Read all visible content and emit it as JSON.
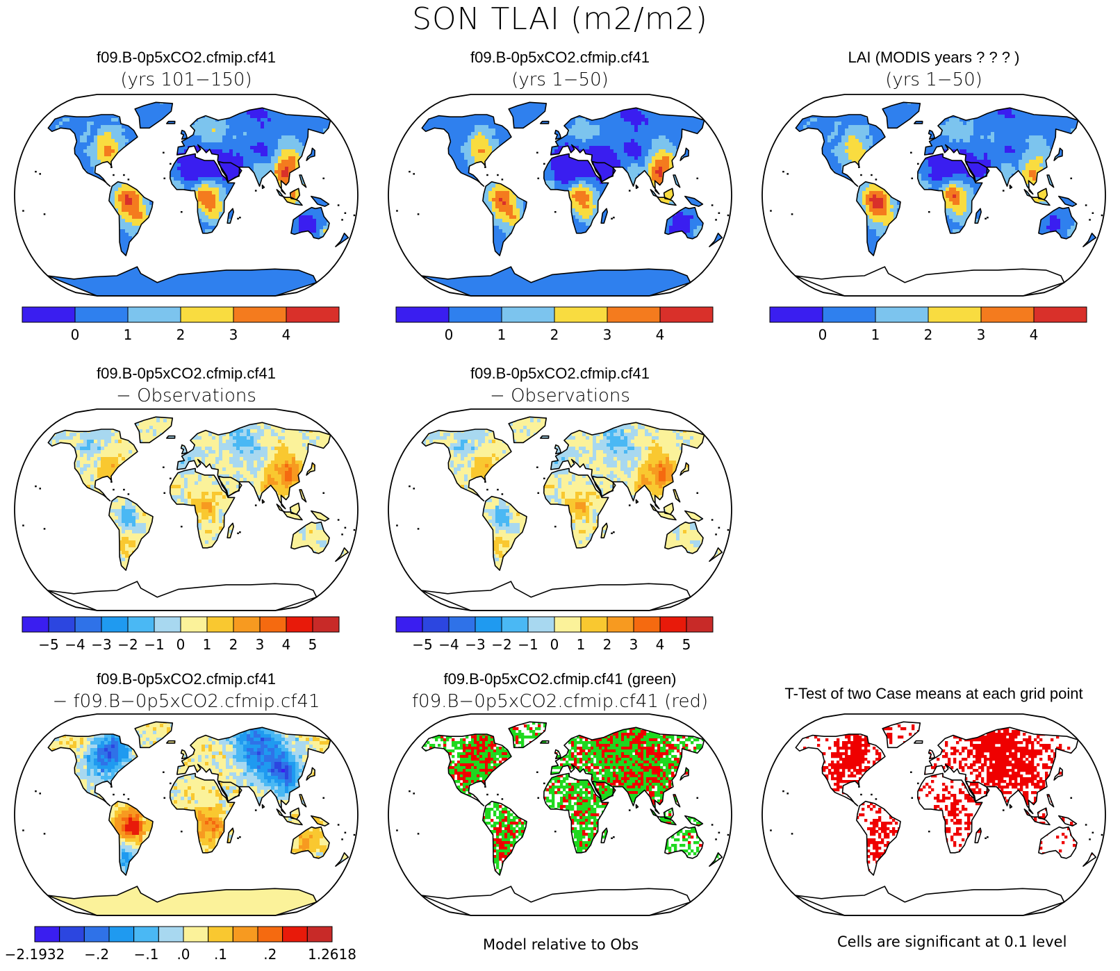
{
  "title": "SON TLAI (m2/m2)",
  "colors": {
    "abs_scale": [
      "#3a1ef0",
      "#2f80ee",
      "#7cc4ee",
      "#f9dc40",
      "#f47b1e",
      "#d9302a"
    ],
    "diff_scale": [
      "#3a1ef0",
      "#2c46e0",
      "#2f72e8",
      "#1f9af0",
      "#4ab8f4",
      "#a8d8f0",
      "#fbf29a",
      "#f9c830",
      "#f79a20",
      "#f56a10",
      "#e81a0a",
      "#c82a28"
    ],
    "sig_red": "#ef0000",
    "sig_green": "#1fd91f"
  },
  "panels": [
    {
      "title1": "f09.B-0p5xCO2.cfmip.cf41",
      "title2": "(yrs 101−150)"
    },
    {
      "title1": "f09.B-0p5xCO2.cfmip.cf41",
      "title2": "(yrs 1−50)"
    },
    {
      "title1": "LAI (MODIS years ? ? ? )",
      "title2": "(yrs 1−50)"
    },
    {
      "title1": "f09.B-0p5xCO2.cfmip.cf41",
      "title2": "− Observations"
    },
    {
      "title1": "f09.B-0p5xCO2.cfmip.cf41",
      "title2": "− Observations"
    },
    {
      "title1": "f09.B-0p5xCO2.cfmip.cf41",
      "title2": "− f09.B−0p5xCO2.cfmip.cf41"
    },
    {
      "title1": "f09.B-0p5xCO2.cfmip.cf41 (green)",
      "title2": "f09.B−0p5xCO2.cfmip.cf41 (red)"
    },
    {
      "title1": "T-Test of two Case means at each grid point",
      "title2": ""
    }
  ],
  "colorbars": {
    "abs_labels": [
      "0",
      "1",
      "2",
      "3",
      "4"
    ],
    "diff_labels": [
      "−5",
      "−4",
      "−3",
      "−2",
      "−1",
      "0",
      "1",
      "2",
      "3",
      "4",
      "5"
    ],
    "case_diff_labels": [
      "−2.1932",
      "−.2",
      "−.1",
      ".0",
      ".1",
      ".2",
      "1.2618"
    ]
  },
  "footnotes": {
    "model_obs": "Model relative to Obs",
    "significance": "Cells are significant at 0.1 level"
  },
  "chart_data": [
    {
      "type": "heatmap",
      "title": "f09.B-0p5xCO2.cfmip.cf41 (yrs 101−150)",
      "colorbar_ticks": [
        0,
        1,
        2,
        3,
        4
      ]
    },
    {
      "type": "heatmap",
      "title": "f09.B-0p5xCO2.cfmip.cf41 (yrs 1−50)",
      "colorbar_ticks": [
        0,
        1,
        2,
        3,
        4
      ]
    },
    {
      "type": "heatmap",
      "title": "LAI (MODIS years ? ? ? ) (yrs 1−50)",
      "colorbar_ticks": [
        0,
        1,
        2,
        3,
        4
      ]
    },
    {
      "type": "heatmap",
      "title": "f09.B-0p5xCO2.cfmip.cf41 − Observations",
      "colorbar_ticks": [
        -5,
        -4,
        -3,
        -2,
        -1,
        0,
        1,
        2,
        3,
        4,
        5
      ]
    },
    {
      "type": "heatmap",
      "title": "f09.B-0p5xCO2.cfmip.cf41 − Observations",
      "colorbar_ticks": [
        -5,
        -4,
        -3,
        -2,
        -1,
        0,
        1,
        2,
        3,
        4,
        5
      ]
    },
    {
      "type": "heatmap",
      "title": "f09.B-0p5xCO2.cfmip.cf41 − f09.B−0p5xCO2.cfmip.cf41",
      "colorbar_ticks": [
        -2.1932,
        -0.2,
        -0.1,
        0.0,
        0.1,
        0.2,
        1.2618
      ]
    },
    {
      "type": "heatmap",
      "title": "f09.B-0p5xCO2.cfmip.cf41 (green) f09.B−0p5xCO2.cfmip.cf41 (red)"
    },
    {
      "type": "heatmap",
      "title": "T-Test of two Case means at each grid point"
    }
  ]
}
